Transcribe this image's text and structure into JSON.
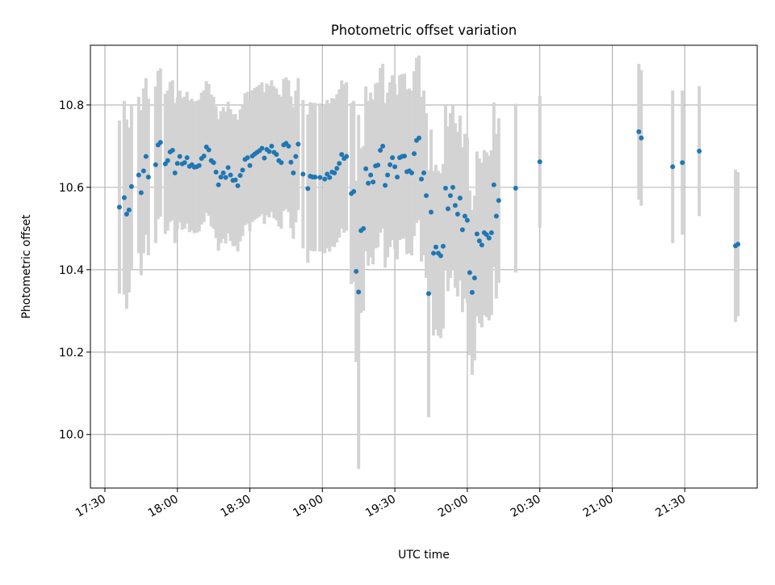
{
  "chart_data": {
    "type": "scatter",
    "title": "Photometric offset variation",
    "xlabel": "UTC time",
    "ylabel": "Photometric offset",
    "x_ticks": [
      "17:30",
      "18:00",
      "18:30",
      "19:00",
      "19:30",
      "20:00",
      "20:30",
      "21:00",
      "21:30"
    ],
    "y_ticks": [
      "10.0",
      "10.2",
      "10.4",
      "10.6",
      "10.8"
    ],
    "xlim": [
      "17:24",
      "22:00"
    ],
    "ylim": [
      9.87,
      10.945
    ],
    "grid": true,
    "colors": {
      "points": "#1f77b4",
      "error_bars": "#d3d3d3",
      "grid": "#b0b0b0"
    },
    "series": [
      {
        "points": [
          [
            "17:36",
            10.552,
            0.21
          ],
          [
            "17:38",
            10.575,
            0.235
          ],
          [
            "17:39",
            10.535,
            0.23
          ],
          [
            "17:40",
            10.545,
            0.2
          ],
          [
            "17:41",
            10.602,
            0.2
          ],
          [
            "17:44",
            10.63,
            0.19
          ],
          [
            "17:45",
            10.587,
            0.2
          ],
          [
            "17:46",
            10.64,
            0.2
          ],
          [
            "17:47",
            10.675,
            0.19
          ],
          [
            "17:48",
            10.625,
            0.19
          ],
          [
            "17:51",
            10.655,
            0.19
          ],
          [
            "17:52",
            10.703,
            0.18
          ],
          [
            "17:53",
            10.709,
            0.18
          ],
          [
            "17:55",
            10.657,
            0.17
          ],
          [
            "17:56",
            10.665,
            0.17
          ],
          [
            "17:57",
            10.686,
            0.17
          ],
          [
            "17:58",
            10.69,
            0.17
          ],
          [
            "17:59",
            10.635,
            0.17
          ],
          [
            "18:00",
            10.658,
            0.16
          ],
          [
            "18:01",
            10.675,
            0.16
          ],
          [
            "18:02",
            10.657,
            0.16
          ],
          [
            "18:03",
            10.66,
            0.16
          ],
          [
            "18:04",
            10.672,
            0.16
          ],
          [
            "18:05",
            10.651,
            0.16
          ],
          [
            "18:06",
            10.655,
            0.16
          ],
          [
            "18:07",
            10.649,
            0.16
          ],
          [
            "18:08",
            10.65,
            0.16
          ],
          [
            "18:09",
            10.653,
            0.16
          ],
          [
            "18:10",
            10.67,
            0.16
          ],
          [
            "18:11",
            10.676,
            0.16
          ],
          [
            "18:12",
            10.698,
            0.16
          ],
          [
            "18:13",
            10.691,
            0.16
          ],
          [
            "18:14",
            10.665,
            0.16
          ],
          [
            "18:15",
            10.66,
            0.16
          ],
          [
            "18:16",
            10.637,
            0.16
          ],
          [
            "18:17",
            10.606,
            0.16
          ],
          [
            "18:18",
            10.625,
            0.16
          ],
          [
            "18:19",
            10.635,
            0.16
          ],
          [
            "18:20",
            10.624,
            0.16
          ],
          [
            "18:21",
            10.648,
            0.16
          ],
          [
            "18:22",
            10.63,
            0.16
          ],
          [
            "18:23",
            10.617,
            0.16
          ],
          [
            "18:24",
            10.618,
            0.16
          ],
          [
            "18:25",
            10.604,
            0.16
          ],
          [
            "18:26",
            10.629,
            0.16
          ],
          [
            "18:27",
            10.642,
            0.16
          ],
          [
            "18:28",
            10.668,
            0.16
          ],
          [
            "18:29",
            10.672,
            0.16
          ],
          [
            "18:30",
            10.653,
            0.16
          ],
          [
            "18:31",
            10.676,
            0.16
          ],
          [
            "18:32",
            10.681,
            0.16
          ],
          [
            "18:33",
            10.685,
            0.16
          ],
          [
            "18:34",
            10.689,
            0.16
          ],
          [
            "18:35",
            10.695,
            0.16
          ],
          [
            "18:36",
            10.671,
            0.16
          ],
          [
            "18:37",
            10.692,
            0.16
          ],
          [
            "18:38",
            10.687,
            0.16
          ],
          [
            "18:39",
            10.7,
            0.16
          ],
          [
            "18:40",
            10.685,
            0.16
          ],
          [
            "18:41",
            10.68,
            0.16
          ],
          [
            "18:42",
            10.665,
            0.16
          ],
          [
            "18:43",
            10.66,
            0.16
          ],
          [
            "18:44",
            10.703,
            0.16
          ],
          [
            "18:45",
            10.707,
            0.16
          ],
          [
            "18:46",
            10.7,
            0.16
          ],
          [
            "18:47",
            10.661,
            0.16
          ],
          [
            "18:48",
            10.635,
            0.16
          ],
          [
            "18:49",
            10.675,
            0.16
          ],
          [
            "18:50",
            10.705,
            0.16
          ],
          [
            "18:52",
            10.632,
            0.18
          ],
          [
            "18:54",
            10.597,
            0.18
          ],
          [
            "18:55",
            10.627,
            0.18
          ],
          [
            "18:56",
            10.625,
            0.18
          ],
          [
            "18:57",
            10.625,
            0.18
          ],
          [
            "18:59",
            10.624,
            0.18
          ],
          [
            "19:01",
            10.62,
            0.18
          ],
          [
            "19:02",
            10.632,
            0.18
          ],
          [
            "19:03",
            10.624,
            0.18
          ],
          [
            "19:04",
            10.637,
            0.18
          ],
          [
            "19:05",
            10.635,
            0.18
          ],
          [
            "19:06",
            10.646,
            0.18
          ],
          [
            "19:07",
            10.658,
            0.18
          ],
          [
            "19:08",
            10.68,
            0.18
          ],
          [
            "19:09",
            10.67,
            0.18
          ],
          [
            "19:10",
            10.675,
            0.18
          ],
          [
            "19:12",
            10.585,
            0.22
          ],
          [
            "19:13",
            10.59,
            0.22
          ],
          [
            "19:14",
            10.396,
            0.22
          ],
          [
            "19:15",
            10.346,
            0.43
          ],
          [
            "19:16",
            10.495,
            0.2
          ],
          [
            "19:17",
            10.5,
            0.2
          ],
          [
            "19:18",
            10.645,
            0.2
          ],
          [
            "19:19",
            10.61,
            0.2
          ],
          [
            "19:20",
            10.63,
            0.2
          ],
          [
            "19:21",
            10.613,
            0.2
          ],
          [
            "19:22",
            10.652,
            0.2
          ],
          [
            "19:23",
            10.654,
            0.2
          ],
          [
            "19:24",
            10.69,
            0.2
          ],
          [
            "19:25",
            10.7,
            0.2
          ],
          [
            "19:26",
            10.605,
            0.2
          ],
          [
            "19:27",
            10.63,
            0.2
          ],
          [
            "19:28",
            10.655,
            0.2
          ],
          [
            "19:29",
            10.672,
            0.2
          ],
          [
            "19:30",
            10.65,
            0.2
          ],
          [
            "19:31",
            10.625,
            0.2
          ],
          [
            "19:32",
            10.672,
            0.2
          ],
          [
            "19:33",
            10.675,
            0.2
          ],
          [
            "19:34",
            10.676,
            0.2
          ],
          [
            "19:35",
            10.638,
            0.2
          ],
          [
            "19:36",
            10.64,
            0.2
          ],
          [
            "19:37",
            10.635,
            0.2
          ],
          [
            "19:38",
            10.682,
            0.2
          ],
          [
            "19:39",
            10.714,
            0.2
          ],
          [
            "19:40",
            10.72,
            0.2
          ],
          [
            "19:41",
            10.62,
            0.2
          ],
          [
            "19:42",
            10.635,
            0.2
          ],
          [
            "19:43",
            10.58,
            0.2
          ],
          [
            "19:44",
            10.342,
            0.3
          ],
          [
            "19:45",
            10.54,
            0.2
          ],
          [
            "19:46",
            10.44,
            0.2
          ],
          [
            "19:47",
            10.455,
            0.2
          ],
          [
            "19:48",
            10.44,
            0.2
          ],
          [
            "19:49",
            10.434,
            0.2
          ],
          [
            "19:50",
            10.457,
            0.2
          ],
          [
            "19:51",
            10.598,
            0.2
          ],
          [
            "19:52",
            10.548,
            0.2
          ],
          [
            "19:53",
            10.58,
            0.2
          ],
          [
            "19:54",
            10.6,
            0.2
          ],
          [
            "19:55",
            10.556,
            0.2
          ],
          [
            "19:56",
            10.535,
            0.2
          ],
          [
            "19:57",
            10.574,
            0.2
          ],
          [
            "19:58",
            10.497,
            0.2
          ],
          [
            "19:59",
            10.53,
            0.2
          ],
          [
            "20:00",
            10.52,
            0.2
          ],
          [
            "20:01",
            10.393,
            0.2
          ],
          [
            "20:02",
            10.345,
            0.2
          ],
          [
            "20:03",
            10.38,
            0.2
          ],
          [
            "20:04",
            10.487,
            0.2
          ],
          [
            "20:05",
            10.47,
            0.2
          ],
          [
            "20:06",
            10.46,
            0.2
          ],
          [
            "20:07",
            10.49,
            0.2
          ],
          [
            "20:08",
            10.485,
            0.2
          ],
          [
            "20:09",
            10.477,
            0.2
          ],
          [
            "20:10",
            10.49,
            0.2
          ],
          [
            "20:11",
            10.606,
            0.2
          ],
          [
            "20:12",
            10.53,
            0.2
          ],
          [
            "20:13",
            10.568,
            0.2
          ],
          [
            "20:20",
            10.598,
            0.205
          ],
          [
            "20:30",
            10.662,
            0.16
          ],
          [
            "21:11",
            10.735,
            0.165
          ],
          [
            "21:12",
            10.72,
            0.165
          ],
          [
            "21:25",
            10.65,
            0.185
          ],
          [
            "21:29",
            10.66,
            0.175
          ],
          [
            "21:36",
            10.688,
            0.158
          ],
          [
            "21:51",
            10.458,
            0.185
          ],
          [
            "21:52",
            10.462,
            0.175
          ]
        ]
      }
    ]
  }
}
